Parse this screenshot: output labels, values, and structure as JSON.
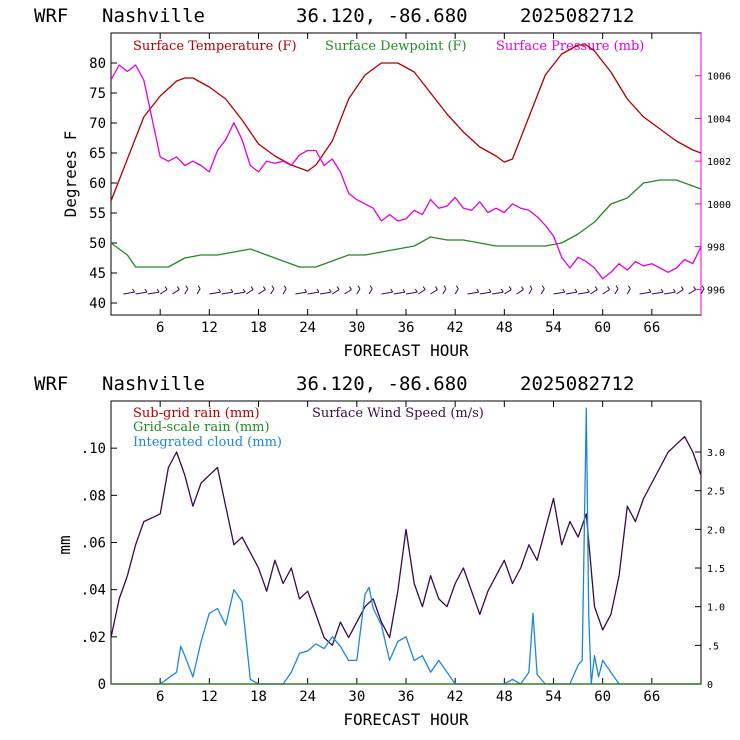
{
  "header": {
    "model": "WRF",
    "location": "Nashville",
    "coords": "36.120, -86.680",
    "datetime": "2025082712"
  },
  "colors": {
    "temperature": "#b00000",
    "dewpoint": "#228b22",
    "pressure": "#e000e0",
    "wind": "#3a0a4a",
    "cloud": "#1e88d8",
    "axis": "#000000"
  },
  "chart_data": [
    {
      "type": "line",
      "xlabel": "FORECAST HOUR",
      "ylabel": "Degrees F",
      "xlim": [
        0,
        72
      ],
      "ylim": [
        38,
        85
      ],
      "y2lim": [
        994.8,
        1008
      ],
      "xticks": [
        "6",
        "12",
        "18",
        "24",
        "30",
        "36",
        "42",
        "48",
        "54",
        "60",
        "66"
      ],
      "yticks": [
        "40",
        "45",
        "50",
        "55",
        "60",
        "65",
        "70",
        "75",
        "80"
      ],
      "y2ticks": [
        "996",
        "998",
        "1000",
        "1002",
        "1004",
        "1006"
      ],
      "legend": [
        "Surface Temperature (F)",
        "Surface Dewpoint (F)",
        "Surface Pressure (mb)"
      ],
      "series": [
        {
          "name": "Surface Temperature (F)",
          "axis": "left",
          "x": [
            0,
            2,
            4,
            6,
            8,
            9,
            10,
            12,
            14,
            16,
            18,
            20,
            22,
            24,
            25,
            27,
            29,
            31,
            33,
            35,
            37,
            39,
            41,
            43,
            45,
            47,
            48,
            49,
            51,
            53,
            55,
            57,
            58,
            59,
            61,
            63,
            65,
            67,
            69,
            71,
            72
          ],
          "values": [
            57,
            64,
            71,
            74.5,
            77,
            77.5,
            77.5,
            76,
            74,
            70.5,
            66.5,
            64.5,
            63,
            62,
            63,
            67,
            74,
            78,
            80,
            80,
            78.5,
            75,
            71.5,
            68.5,
            66,
            64.5,
            63.5,
            64,
            71,
            78,
            81.5,
            83,
            83,
            82,
            78.5,
            74,
            71,
            69,
            67,
            65.5,
            65
          ]
        },
        {
          "name": "Surface Dewpoint (F)",
          "axis": "left",
          "x": [
            0,
            2,
            3,
            5,
            7,
            9,
            11,
            13,
            15,
            17,
            19,
            21,
            23,
            25,
            27,
            29,
            31,
            33,
            35,
            37,
            39,
            41,
            43,
            45,
            47,
            49,
            51,
            53,
            55,
            57,
            59,
            61,
            63,
            65,
            67,
            69,
            71,
            72
          ],
          "values": [
            50,
            48,
            46,
            46,
            46,
            47.5,
            48,
            48,
            48.5,
            49,
            48,
            47,
            46,
            46,
            47,
            48,
            48,
            48.5,
            49,
            49.5,
            51,
            50.5,
            50.5,
            50,
            49.5,
            49.5,
            49.5,
            49.5,
            50,
            51.5,
            53.5,
            56.5,
            57.5,
            60,
            60.5,
            60.5,
            59.5,
            59
          ]
        },
        {
          "name": "Surface Pressure (mb)",
          "axis": "right",
          "x": [
            0,
            1,
            2,
            3,
            4,
            5,
            6,
            7,
            8,
            9,
            10,
            11,
            12,
            13,
            14,
            15,
            16,
            17,
            18,
            19,
            20,
            21,
            22,
            23,
            24,
            25,
            26,
            27,
            28,
            29,
            30,
            31,
            32,
            33,
            34,
            35,
            36,
            37,
            38,
            39,
            40,
            41,
            42,
            43,
            44,
            45,
            46,
            47,
            48,
            49,
            50,
            51,
            52,
            53,
            54,
            55,
            56,
            57,
            58,
            59,
            60,
            61,
            62,
            63,
            64,
            65,
            66,
            67,
            68,
            69,
            70,
            71,
            72
          ],
          "values": [
            1005.8,
            1006.5,
            1006.2,
            1006.5,
            1005.8,
            1004,
            1002.2,
            1002,
            1002.2,
            1001.8,
            1002,
            1001.8,
            1001.5,
            1002.5,
            1003,
            1003.8,
            1003,
            1001.8,
            1001.5,
            1002,
            1001.9,
            1002,
            1001.8,
            1002.3,
            1002.5,
            1002.5,
            1001.8,
            1002.1,
            1001.5,
            1000.5,
            1000.2,
            1000,
            999.8,
            999.2,
            999.5,
            999.2,
            999.3,
            999.7,
            999.5,
            1000.2,
            999.8,
            999.9,
            1000.3,
            999.8,
            999.7,
            1000.1,
            999.6,
            999.8,
            999.6,
            1000,
            999.8,
            999.7,
            999.4,
            999,
            998.5,
            997.5,
            997,
            997.5,
            997.3,
            997,
            996.5,
            996.8,
            997.2,
            996.9,
            997.3,
            997.1,
            997.2,
            997,
            996.8,
            997,
            997.4,
            997.2,
            998
          ]
        }
      ]
    },
    {
      "type": "line",
      "xlabel": "FORECAST HOUR",
      "ylabel": "mm",
      "xlim": [
        0,
        72
      ],
      "ylim": [
        0,
        0.12
      ],
      "y2lim": [
        0,
        3.66
      ],
      "xticks": [
        "6",
        "12",
        "18",
        "24",
        "30",
        "36",
        "42",
        "48",
        "54",
        "60",
        "66"
      ],
      "yticks": [
        "0",
        ".02",
        ".04",
        ".06",
        ".08",
        ".10"
      ],
      "y2ticks": [
        "0",
        ".5",
        "1.0",
        "1.5",
        "2.0",
        "2.5",
        "3.0"
      ],
      "legend": [
        "Sub-grid rain (mm)",
        "Grid-scale rain (mm)",
        "Integrated cloud (mm)",
        "Surface Wind Speed (m/s)"
      ],
      "series": [
        {
          "name": "Surface Wind Speed (m/s)",
          "axis": "right",
          "x": [
            0,
            1,
            2,
            3,
            4,
            5,
            6,
            7,
            8,
            9,
            10,
            11,
            12,
            13,
            14,
            15,
            16,
            17,
            18,
            19,
            20,
            21,
            22,
            23,
            24,
            25,
            26,
            27,
            28,
            29,
            30,
            31,
            32,
            33,
            34,
            35,
            36,
            37,
            38,
            39,
            40,
            41,
            42,
            43,
            44,
            45,
            46,
            47,
            48,
            49,
            50,
            51,
            52,
            53,
            54,
            55,
            56,
            57,
            58,
            59,
            60,
            61,
            62,
            63,
            64,
            65,
            66,
            67,
            68,
            69,
            70,
            71,
            72
          ],
          "values": [
            0.6,
            1.1,
            1.4,
            1.8,
            2.1,
            2.15,
            2.2,
            2.8,
            3.0,
            2.7,
            2.3,
            2.6,
            2.7,
            2.8,
            2.3,
            1.8,
            1.9,
            1.7,
            1.5,
            1.2,
            1.6,
            1.3,
            1.5,
            1.1,
            1.2,
            0.9,
            0.6,
            0.5,
            0.8,
            0.6,
            0.8,
            1.0,
            1.1,
            0.8,
            0.6,
            1.2,
            2.0,
            1.3,
            1.0,
            1.4,
            1.1,
            1.0,
            1.3,
            1.5,
            1.2,
            0.9,
            1.2,
            1.4,
            1.6,
            1.3,
            1.5,
            1.8,
            1.6,
            2.0,
            2.4,
            1.8,
            2.1,
            1.9,
            2.2,
            1.0,
            0.7,
            0.9,
            1.4,
            2.3,
            2.1,
            2.4,
            2.6,
            2.8,
            3.0,
            3.1,
            3.2,
            3.0,
            2.7
          ]
        },
        {
          "name": "Integrated cloud (mm)",
          "axis": "left",
          "x": [
            0,
            6,
            8,
            8.5,
            9,
            10,
            11,
            12,
            13,
            14,
            15,
            16,
            17,
            18,
            19,
            20,
            21,
            22,
            23,
            24,
            25,
            26,
            27,
            28,
            29,
            30,
            31,
            31.5,
            32,
            33,
            34,
            35,
            36,
            37,
            38,
            39,
            40,
            42,
            44,
            46,
            48,
            49,
            50,
            51,
            51.5,
            52,
            53,
            54,
            56,
            57,
            57.5,
            58,
            58.3,
            58.6,
            59,
            59.5,
            60,
            61,
            62,
            63,
            72
          ],
          "values": [
            0,
            0,
            0.005,
            0.016,
            0.012,
            0.003,
            0.018,
            0.03,
            0.032,
            0.025,
            0.04,
            0.035,
            0.002,
            0,
            0,
            0,
            0,
            0.005,
            0.013,
            0.014,
            0.017,
            0.015,
            0.02,
            0.016,
            0.01,
            0.01,
            0.038,
            0.041,
            0.032,
            0.025,
            0.01,
            0.018,
            0.02,
            0.01,
            0.012,
            0.005,
            0.01,
            0,
            0,
            0,
            0,
            0.002,
            0,
            0.005,
            0.03,
            0.004,
            0,
            0,
            0,
            0.008,
            0.01,
            0.117,
            0.03,
            0,
            0.012,
            0.003,
            0.01,
            0.005,
            0,
            0,
            0
          ]
        },
        {
          "name": "Sub-grid rain (mm)",
          "axis": "left",
          "x": [
            0,
            72
          ],
          "values": [
            0,
            0
          ]
        },
        {
          "name": "Grid-scale rain (mm)",
          "axis": "left",
          "x": [
            0,
            72
          ],
          "values": [
            0,
            0
          ]
        }
      ]
    }
  ]
}
